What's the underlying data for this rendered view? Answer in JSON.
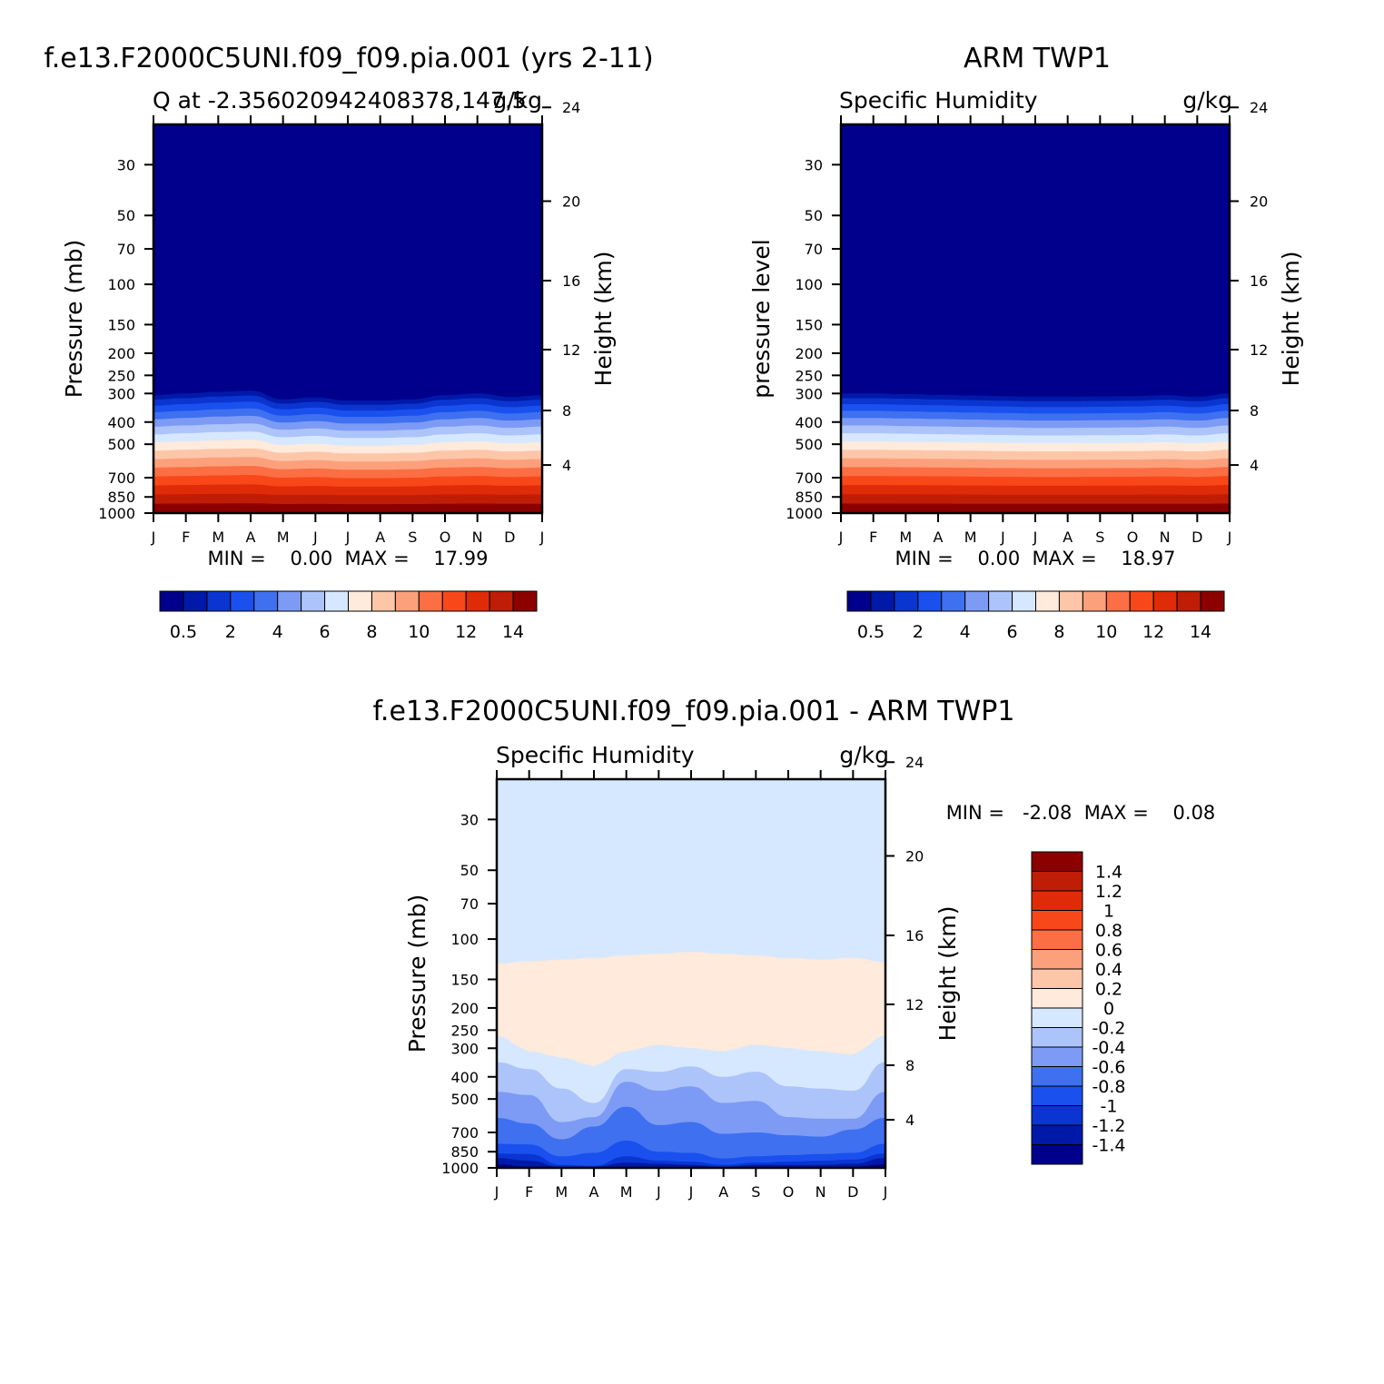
{
  "panels": [
    {
      "title": "f.e13.F2000C5UNI.f09_f09.pia.001 (yrs 2-11)",
      "subtitle_left": "Q at -2.356020942408378,147.5",
      "subtitle_right": "g/kg",
      "ylabel": "Pressure (mb)",
      "ylabel_right": "Height (km)",
      "minmax": "MIN =    0.00  MAX =    17.99"
    },
    {
      "title": "ARM TWP1",
      "subtitle_left": "Specific Humidity",
      "subtitle_right": "g/kg",
      "ylabel": "pressure level",
      "ylabel_right": "Height (km)",
      "minmax": "MIN =    0.00  MAX =    18.97"
    },
    {
      "title": "f.e13.F2000C5UNI.f09_f09.pia.001 - ARM TWP1",
      "subtitle_left": "Specific Humidity",
      "subtitle_right": "g/kg",
      "ylabel": "Pressure (mb)",
      "ylabel_right": "Height (km)",
      "minmax": "MIN =   -2.08  MAX =    0.08"
    }
  ],
  "chart_data": [
    {
      "type": "heatmap",
      "title": "f.e13.F2000C5UNI.f09_f09.pia.001 (yrs 2-11)",
      "subtitle": "Q at -2.356020942408378,147.5",
      "units": "g/kg",
      "xlabel": "",
      "ylabel": "Pressure (mb)",
      "ylabel_right": "Height (km)",
      "x_ticks": [
        "J",
        "F",
        "M",
        "A",
        "M",
        "J",
        "J",
        "A",
        "S",
        "O",
        "N",
        "D",
        "J"
      ],
      "y_ticks": [
        30,
        50,
        70,
        100,
        150,
        200,
        250,
        300,
        400,
        500,
        700,
        850,
        1000
      ],
      "y_ticks_right": [
        4,
        8,
        12,
        16,
        20,
        24
      ],
      "y_scale": "log",
      "ylim": [
        1000,
        20
      ],
      "months": [
        "J",
        "F",
        "M",
        "A",
        "M",
        "J",
        "J",
        "A",
        "S",
        "O",
        "N",
        "D",
        "J"
      ],
      "moist_top_hPa": [
        305,
        300,
        295,
        292,
        318,
        312,
        322,
        322,
        318,
        305,
        300,
        310,
        305
      ],
      "min": 0.0,
      "max": 17.99,
      "colorbar_labels": [
        "0.5",
        "2",
        "4",
        "6",
        "8",
        "10",
        "12",
        "14"
      ]
    },
    {
      "type": "heatmap",
      "title": "ARM TWP1",
      "subtitle": "Specific Humidity",
      "units": "g/kg",
      "xlabel": "",
      "ylabel": "pressure level",
      "ylabel_right": "Height (km)",
      "x_ticks": [
        "J",
        "F",
        "M",
        "A",
        "M",
        "J",
        "J",
        "A",
        "S",
        "O",
        "N",
        "D",
        "J"
      ],
      "y_ticks": [
        30,
        50,
        70,
        100,
        150,
        200,
        250,
        300,
        400,
        500,
        700,
        850,
        1000
      ],
      "y_ticks_right": [
        4,
        8,
        12,
        16,
        20,
        24
      ],
      "y_scale": "log",
      "ylim": [
        1000,
        20
      ],
      "months": [
        "J",
        "F",
        "M",
        "A",
        "M",
        "J",
        "J",
        "A",
        "S",
        "O",
        "N",
        "D",
        "J"
      ],
      "moist_top_hPa": [
        300,
        300,
        302,
        304,
        306,
        308,
        310,
        310,
        309,
        308,
        305,
        310,
        300
      ],
      "min": 0.0,
      "max": 18.97,
      "colorbar_labels": [
        "0.5",
        "2",
        "4",
        "6",
        "8",
        "10",
        "12",
        "14"
      ]
    },
    {
      "type": "heatmap",
      "title": "f.e13.F2000C5UNI.f09_f09.pia.001 - ARM TWP1",
      "subtitle": "Specific Humidity",
      "units": "g/kg",
      "xlabel": "",
      "ylabel": "Pressure (mb)",
      "ylabel_right": "Height (km)",
      "x_ticks": [
        "J",
        "F",
        "M",
        "A",
        "M",
        "J",
        "J",
        "A",
        "S",
        "O",
        "N",
        "D",
        "J"
      ],
      "y_ticks": [
        30,
        50,
        70,
        100,
        150,
        200,
        250,
        300,
        400,
        500,
        700,
        850,
        1000
      ],
      "y_ticks_right": [
        4,
        8,
        12,
        16,
        20,
        24
      ],
      "y_scale": "log",
      "ylim": [
        1000,
        20
      ],
      "months": [
        "J",
        "F",
        "M",
        "A",
        "M",
        "J",
        "J",
        "A",
        "S",
        "O",
        "N",
        "D",
        "J"
      ],
      "positive_band_top_hPa": [
        128,
        125,
        123,
        121,
        118,
        116,
        114,
        116,
        118,
        121,
        123,
        121,
        126
      ],
      "positive_band_bottom_hPa": [
        265,
        310,
        330,
        360,
        310,
        290,
        300,
        310,
        290,
        300,
        310,
        320,
        265
      ],
      "min": -2.08,
      "max": 0.08,
      "colorbar_labels": [
        "1.4",
        "1.2",
        "1",
        "0.8",
        "0.6",
        "0.4",
        "0.2",
        "0",
        "-0.2",
        "-0.4",
        "-0.6",
        "-0.8",
        "-1",
        "-1.2",
        "-1.4"
      ]
    }
  ],
  "colors": {
    "abs_palette": [
      "#00008c",
      "#0019a8",
      "#0a35d0",
      "#1a50ee",
      "#3f70f0",
      "#7d9bf5",
      "#adc4fa",
      "#d6e8ff",
      "#ffeadb",
      "#fdc6a8",
      "#fca07c",
      "#fc6e43",
      "#f8481a",
      "#e02b08",
      "#bf1d06",
      "#8c0000"
    ],
    "diff_palette": [
      "#00008c",
      "#0019a8",
      "#0a35d0",
      "#1a50ee",
      "#3f70f0",
      "#7d9bf5",
      "#adc4fa",
      "#d6e8ff",
      "#ffeadb",
      "#fdc6a8",
      "#fca07c",
      "#fc6e43",
      "#f8481a",
      "#e02b08",
      "#bf1d06",
      "#8c0000"
    ]
  }
}
